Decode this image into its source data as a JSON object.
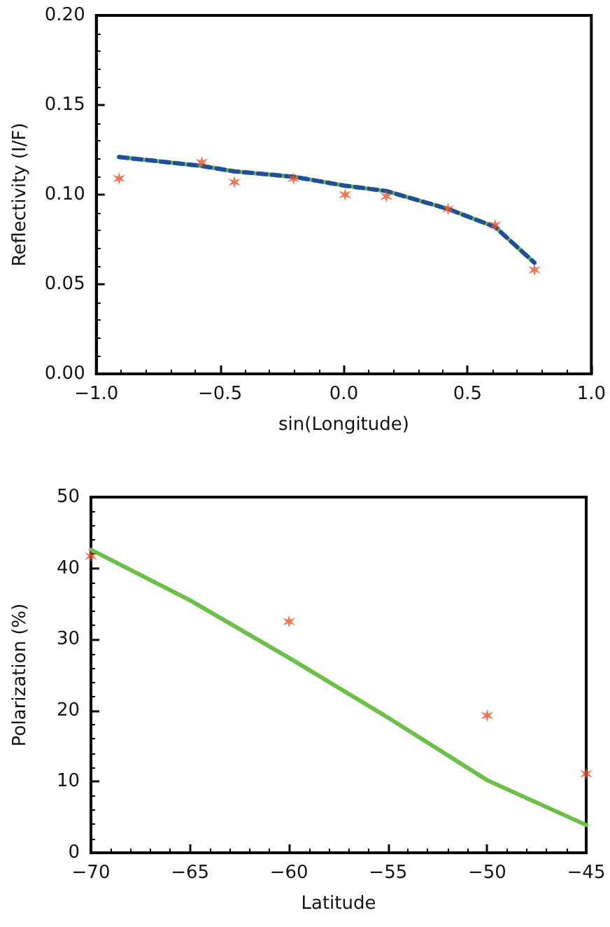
{
  "chart_data": [
    {
      "type": "scatter",
      "xlabel": "sin(Longitude)",
      "ylabel": "Reflectivity (I/F)",
      "xlim": [
        -1.0,
        1.0
      ],
      "xticks": [
        {
          "value": -1,
          "label": "−1.0"
        },
        {
          "value": -0.5,
          "label": "−0.5"
        },
        {
          "value": 0,
          "label": "0.0"
        },
        {
          "value": 0.5,
          "label": "0.5"
        },
        {
          "value": 1,
          "label": "1.0"
        }
      ],
      "ylim": [
        0,
        0.2
      ],
      "yticks": [
        {
          "value": 0,
          "label": "0.00"
        },
        {
          "value": 0.05,
          "label": "0.05"
        },
        {
          "value": 0.1,
          "label": "0.10"
        },
        {
          "value": 0.15,
          "label": "0.15"
        },
        {
          "value": 0.2,
          "label": "0.20"
        }
      ],
      "grid": false,
      "series": [
        {
          "color": "#e8542a",
          "marker": "cross",
          "x": [
            -0.908,
            -0.574,
            -0.442,
            -0.203,
            0.005,
            0.172,
            0.421,
            0.611,
            0.77
          ],
          "values": [
            0.109,
            0.118,
            0.107,
            0.109,
            0.1,
            0.099,
            0.092,
            0.083,
            0.058
          ]
        },
        {
          "type": "line",
          "color": "#6cc04a",
          "marker": "none",
          "line_style": "solid",
          "x": [
            -0.908,
            -0.574,
            -0.442,
            -0.203,
            0.005,
            0.172,
            0.421,
            0.611,
            0.77
          ],
          "values": [
            0.121,
            0.116,
            0.113,
            0.11,
            0.105,
            0.102,
            0.092,
            0.082,
            0.062
          ]
        },
        {
          "type": "line",
          "color": "#1f4e9c",
          "marker": "none",
          "line_style": "dashed",
          "x": [
            -0.908,
            -0.574,
            -0.442,
            -0.203,
            0.005,
            0.172,
            0.421,
            0.611,
            0.77
          ],
          "values": [
            0.121,
            0.116,
            0.113,
            0.11,
            0.105,
            0.102,
            0.092,
            0.082,
            0.062
          ]
        }
      ]
    },
    {
      "type": "scatter",
      "xlabel": "Latitude",
      "ylabel": "Polarization (%)",
      "xlim": [
        -70,
        -45
      ],
      "xticks": [
        {
          "value": -70,
          "label": "−70"
        },
        {
          "value": -65,
          "label": "−65"
        },
        {
          "value": -60,
          "label": "−60"
        },
        {
          "value": -55,
          "label": "−55"
        },
        {
          "value": -50,
          "label": "−50"
        },
        {
          "value": -45,
          "label": "−45"
        }
      ],
      "ylim": [
        0,
        50
      ],
      "yticks": [
        0,
        10,
        20,
        30,
        40,
        50
      ],
      "grid": false,
      "series": [
        {
          "color": "#e8542a",
          "marker": "cross",
          "x": [
            -70,
            -60,
            -50,
            -45
          ],
          "values": [
            41.7,
            32.5,
            19.3,
            11.1
          ]
        },
        {
          "type": "line",
          "color": "#6cc04a",
          "marker": "none",
          "line_style": "solid",
          "x": [
            -70,
            -65,
            -60,
            -55,
            -50,
            -45
          ],
          "values": [
            42.6,
            35.5,
            27.4,
            19.0,
            10.2,
            3.9
          ]
        }
      ]
    }
  ]
}
